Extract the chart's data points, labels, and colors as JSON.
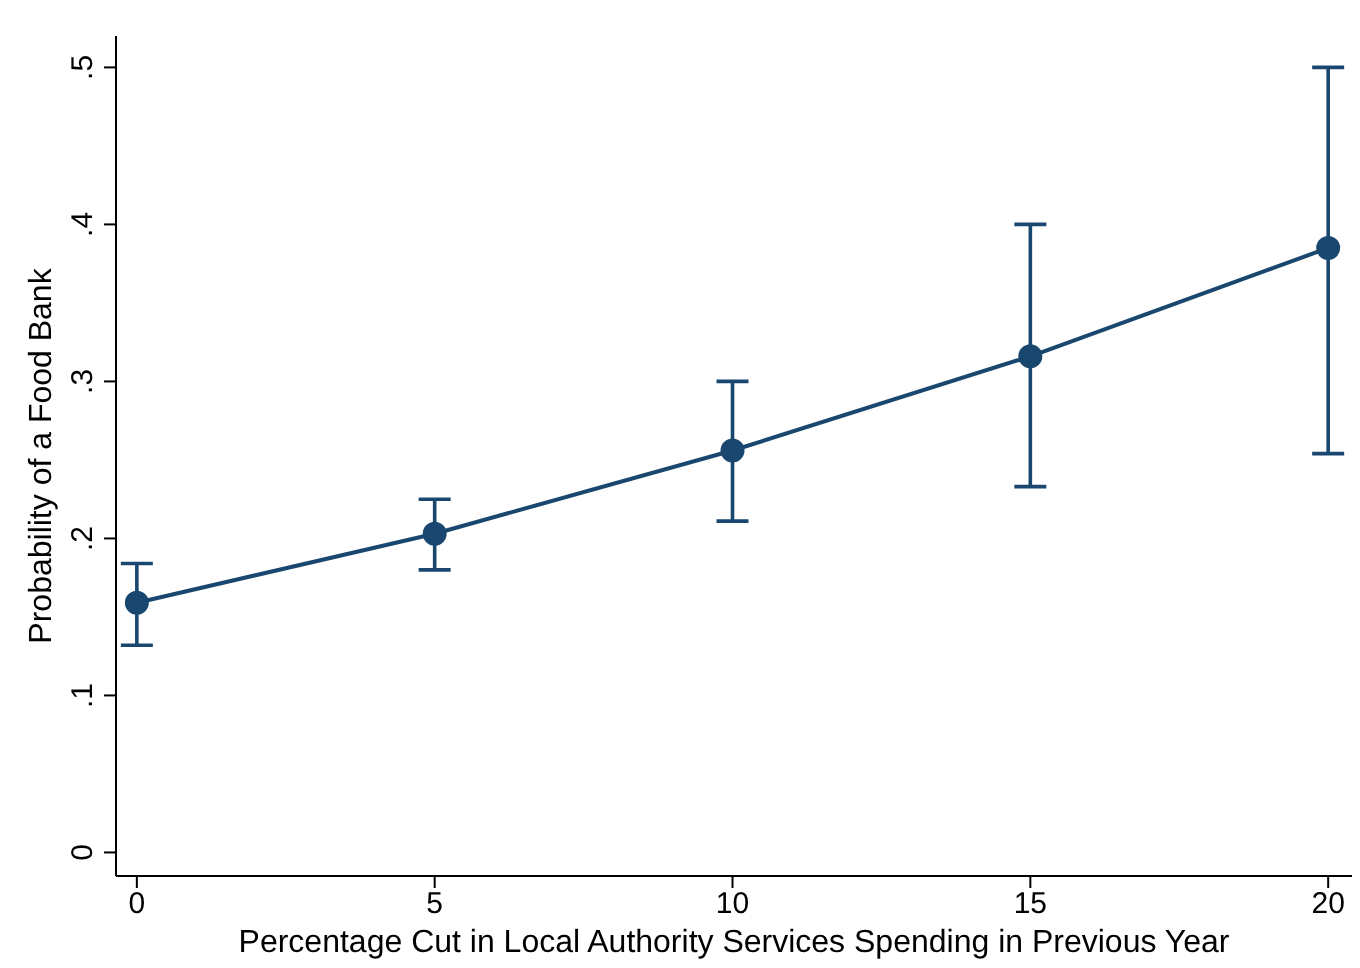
{
  "chart_data": {
    "type": "line",
    "xlabel": "Percentage Cut in Local Authority Services Spending in Previous Year",
    "ylabel": "Probability of a Food Bank",
    "x": [
      0,
      5,
      10,
      15,
      20
    ],
    "series": [
      {
        "color": "#1a476f",
        "values": [
          0.159,
          0.203,
          0.256,
          0.316,
          0.385
        ],
        "errors": [
          [
            0.132,
            0.184
          ],
          [
            0.18,
            0.225
          ],
          [
            0.211,
            0.3
          ],
          [
            0.233,
            0.4
          ],
          [
            0.254,
            0.5
          ]
        ]
      }
    ],
    "xlim": [
      -0.35,
      20.4
    ],
    "xticks": [
      0,
      5,
      10,
      15,
      20
    ],
    "ylim": [
      -0.015,
      0.52
    ],
    "yticks": [
      {
        "value": 0,
        "label": "0"
      },
      {
        "value": 0.1,
        "label": ".1"
      },
      {
        "value": 0.2,
        "label": ".2"
      },
      {
        "value": 0.3,
        "label": ".3"
      },
      {
        "value": 0.4,
        "label": ".4"
      },
      {
        "value": 0.5,
        "label": ".5"
      }
    ],
    "grid": false,
    "legend": false,
    "marker": "circle",
    "line_style": "solid"
  }
}
